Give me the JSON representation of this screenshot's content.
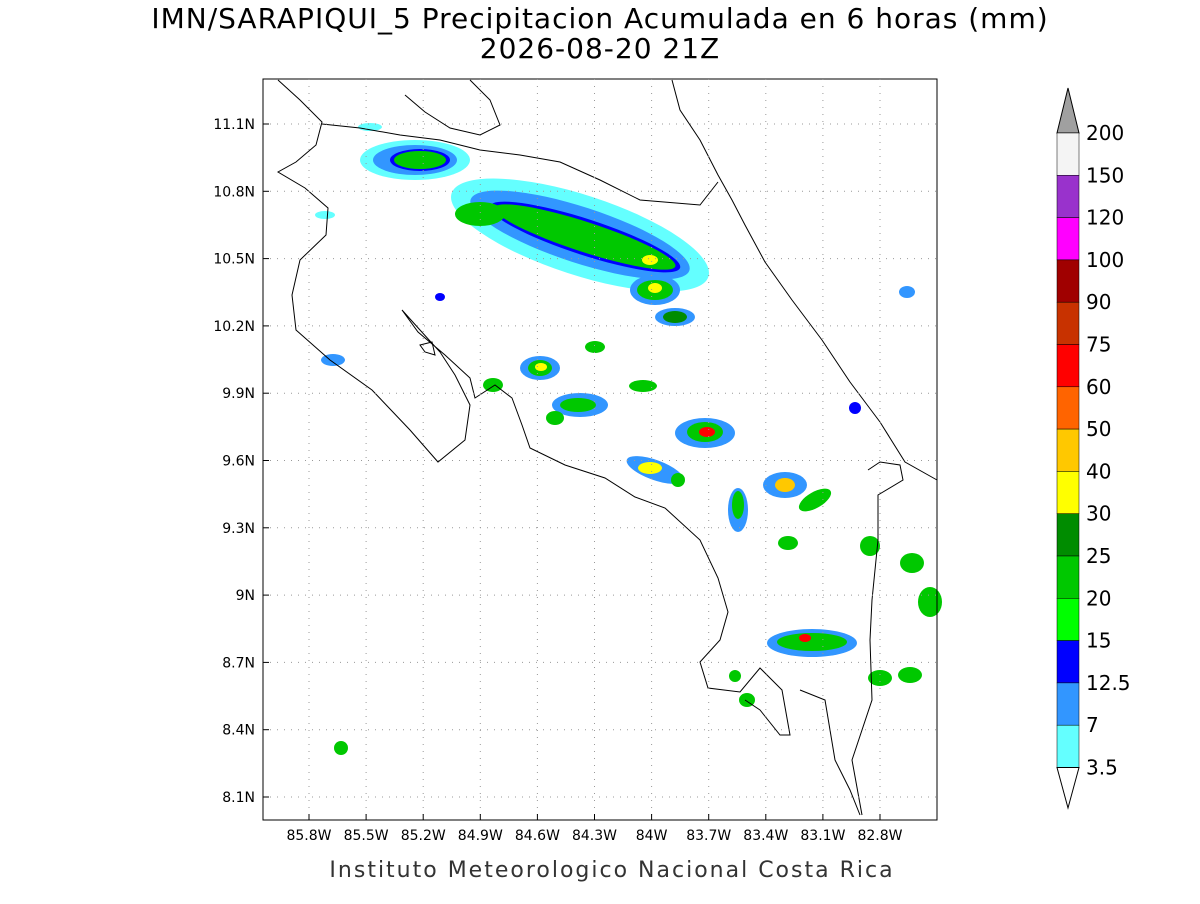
{
  "header": {
    "title": "IMN/SARAPIQUI_5 Precipitacion Acumulada en 6 horas (mm)",
    "subtitle": "2026-08-20 21Z"
  },
  "map": {
    "x_ticks": [
      "85.8W",
      "85.5W",
      "85.2W",
      "84.9W",
      "84.6W",
      "84.3W",
      "84W",
      "83.7W",
      "83.4W",
      "83.1W",
      "82.8W"
    ],
    "y_ticks": [
      "11.1N",
      "10.8N",
      "10.5N",
      "10.2N",
      "9.9N",
      "9.6N",
      "9.3N",
      "9N",
      "8.7N",
      "8.4N",
      "8.1N"
    ]
  },
  "colorbar": {
    "labels": [
      "200",
      "150",
      "120",
      "100",
      "90",
      "75",
      "60",
      "50",
      "40",
      "30",
      "25",
      "20",
      "15",
      "12.5",
      "7",
      "3.5"
    ],
    "colors": [
      "#f4f4f4",
      "#9932cc",
      "#ff00ff",
      "#a00000",
      "#c83200",
      "#ff0000",
      "#ff6400",
      "#ffc800",
      "#ffff00",
      "#008c00",
      "#00c800",
      "#00ff00",
      "#0000ff",
      "#3296ff",
      "#64ffff"
    ],
    "over_color": "#a0a0a0",
    "under_color": "#ffffff"
  },
  "footer": {
    "text": "Instituto Meteorologico Nacional Costa Rica"
  }
}
